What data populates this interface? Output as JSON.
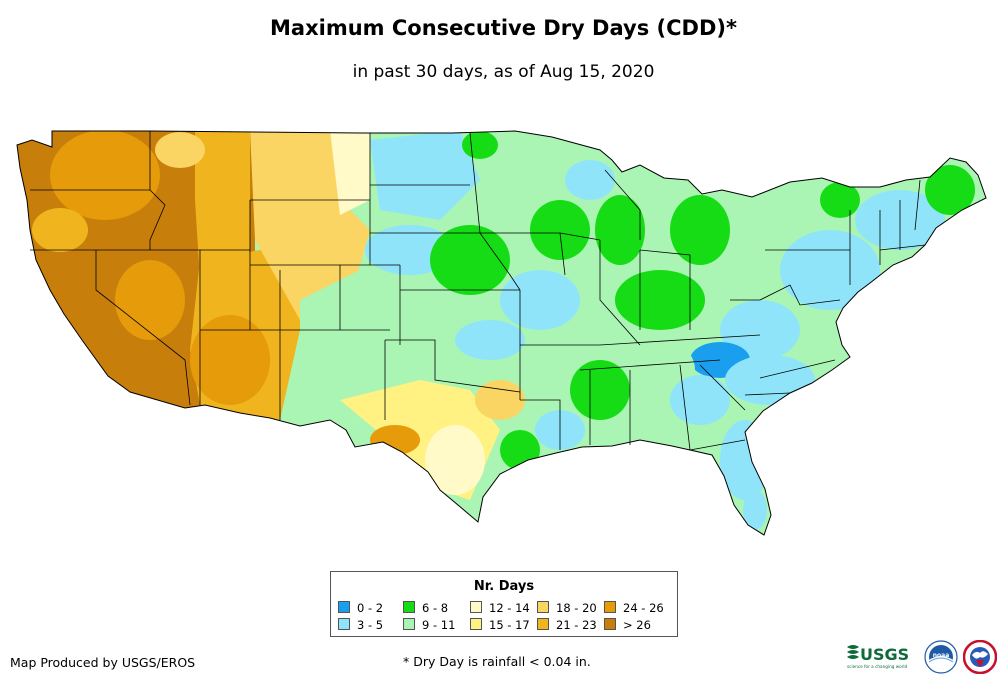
{
  "title": "Maximum Consecutive Dry Days (CDD)*",
  "subtitle": "in past 30 days, as of Aug 15, 2020",
  "legend": {
    "title": "Nr. Days",
    "items": [
      {
        "label": "0 - 2",
        "color": "#1a9fef"
      },
      {
        "label": "3 - 5",
        "color": "#8fe4fa"
      },
      {
        "label": "6 - 8",
        "color": "#16dc16"
      },
      {
        "label": "9 - 11",
        "color": "#aaf5b4"
      },
      {
        "label": "12 - 14",
        "color": "#fffac8"
      },
      {
        "label": "15 - 17",
        "color": "#fff283"
      },
      {
        "label": "18 - 20",
        "color": "#fad564"
      },
      {
        "label": "21 - 23",
        "color": "#f0b51e"
      },
      {
        "label": "24 - 26",
        "color": "#e69b0a"
      },
      {
        "label": "> 26",
        "color": "#c87e0a"
      }
    ]
  },
  "footer": {
    "produced_by": "Map Produced by USGS/EROS",
    "note": "* Dry Day is rainfall < 0.04 in."
  },
  "logos": {
    "usgs": "USGS",
    "usgs_tagline": "science for a changing world",
    "noaa": "noaa"
  }
}
